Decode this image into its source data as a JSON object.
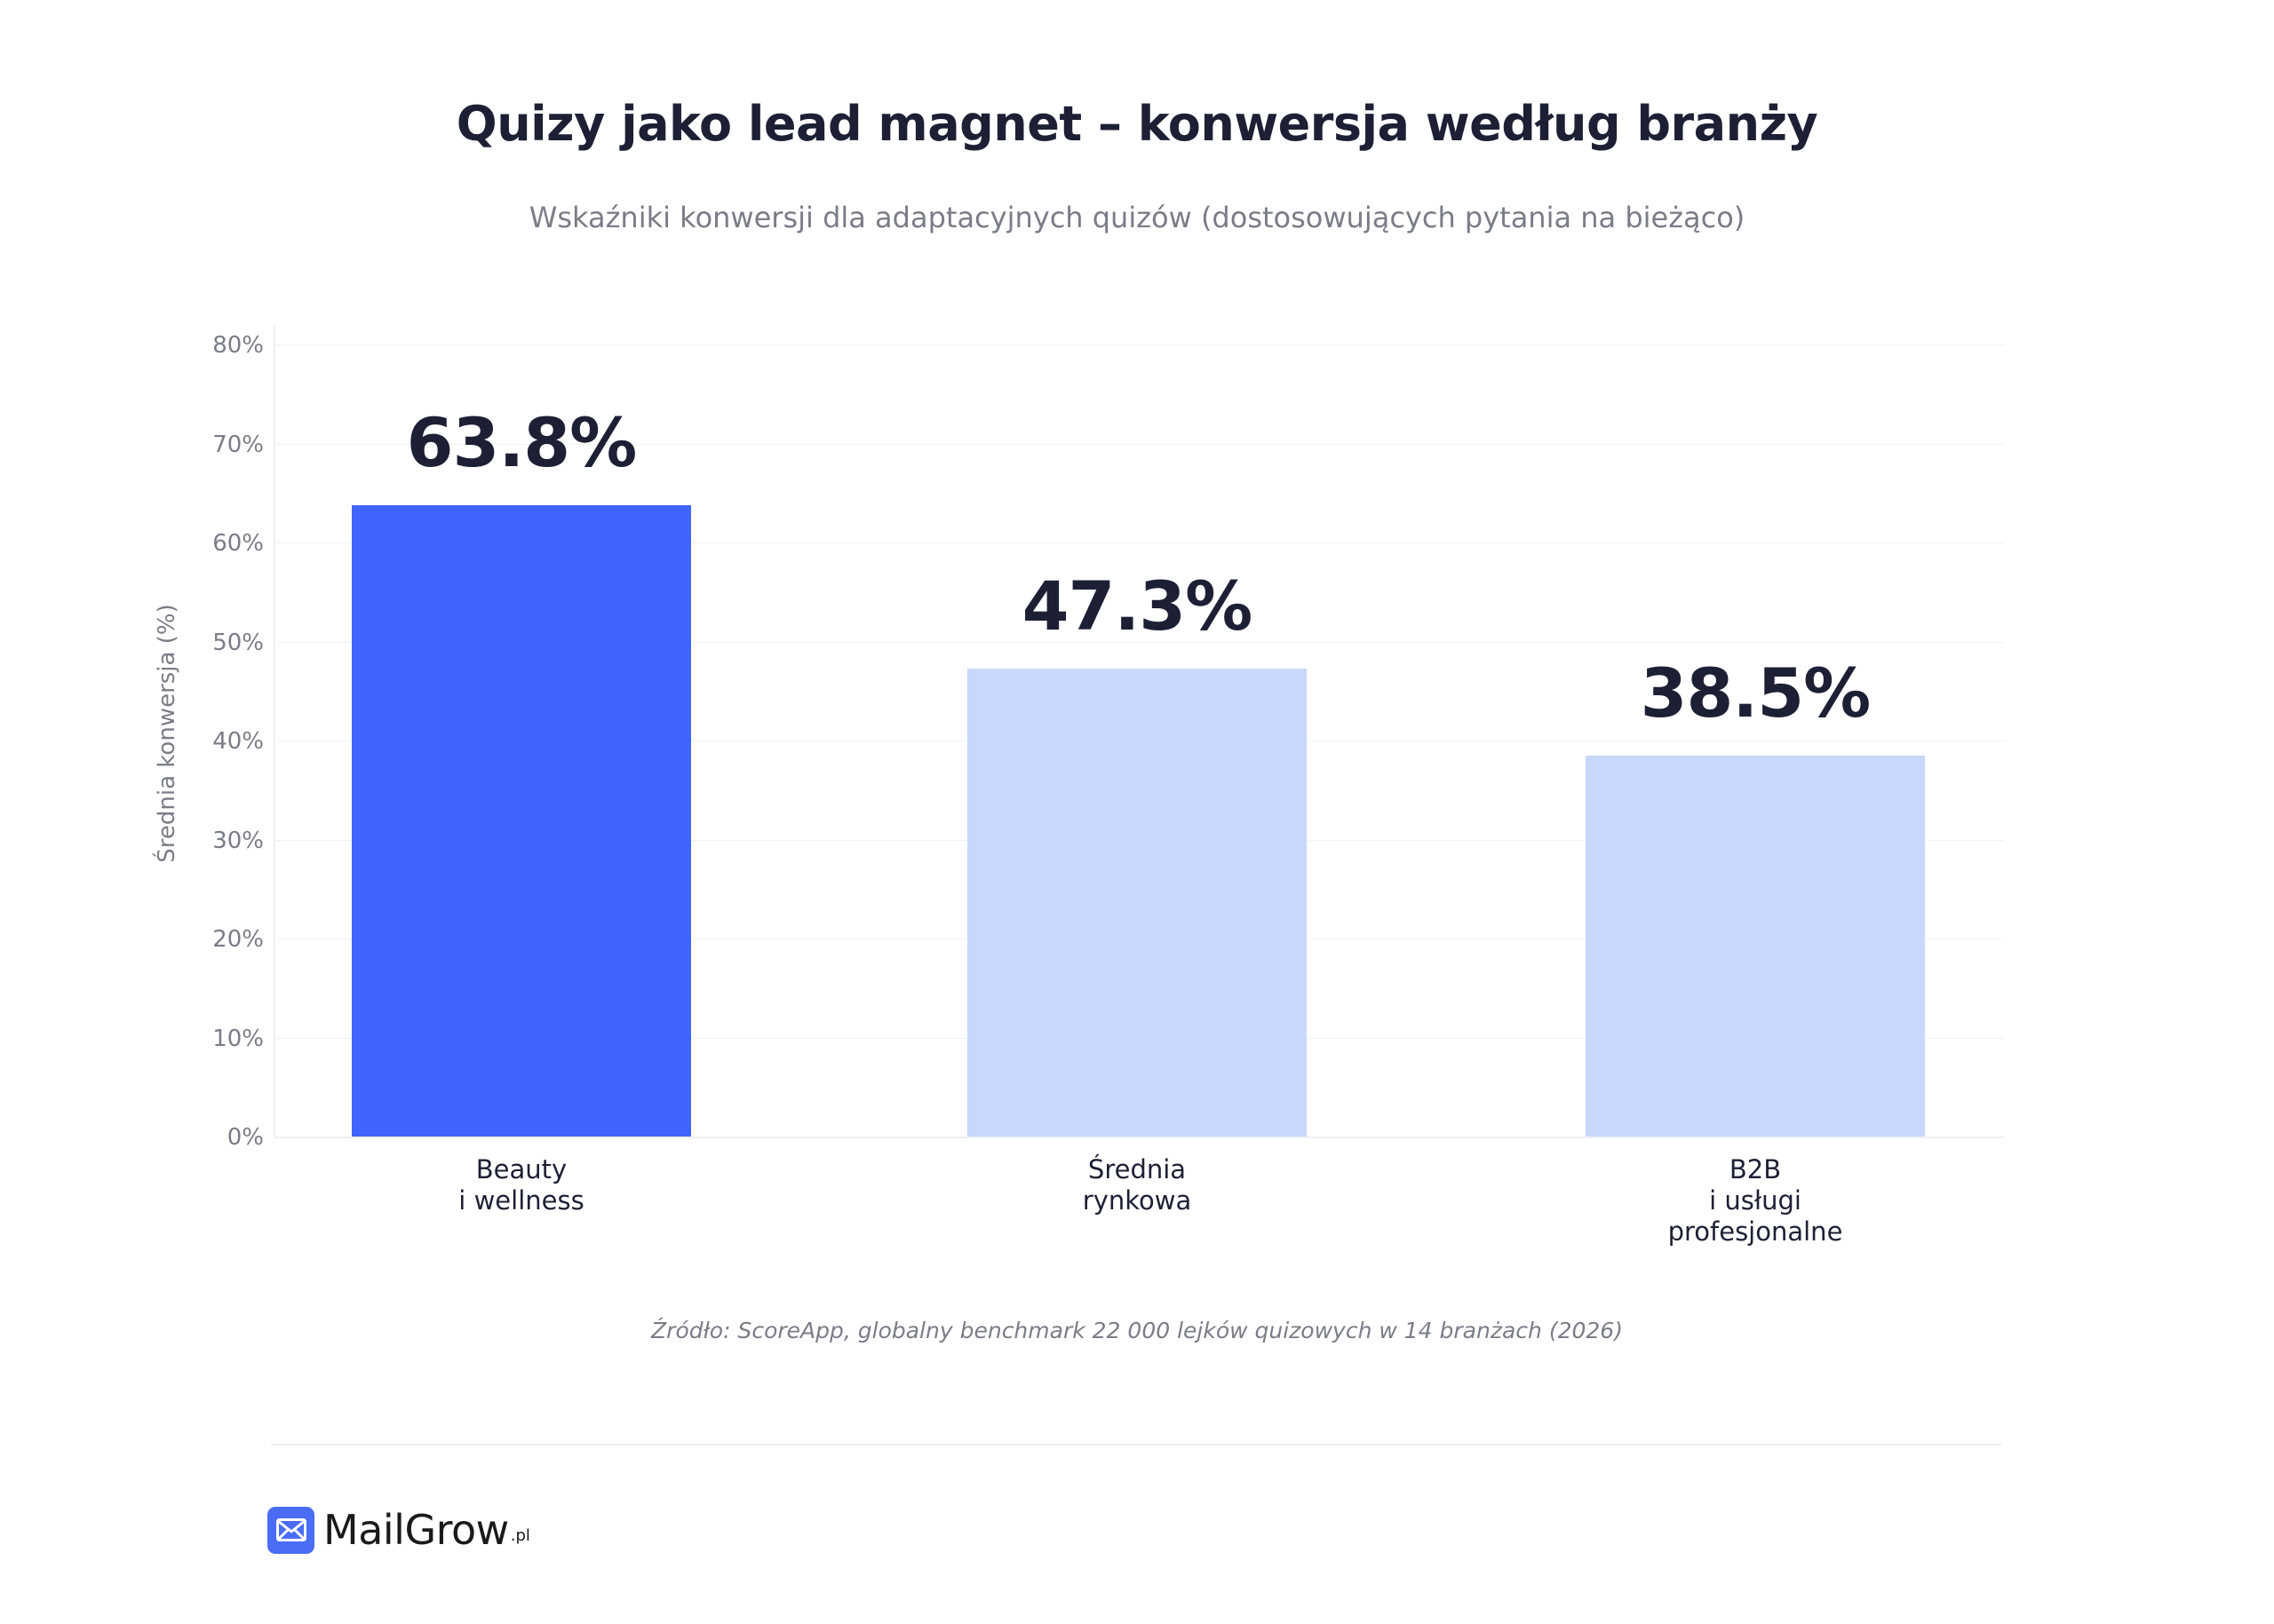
{
  "header": {
    "title": "Quizy jako lead magnet – konwersja według branży",
    "subtitle": "Wskaźniki konwersji dla adaptacyjnych quizów (dostosowujących pytania na bieżąco)"
  },
  "chart_data": {
    "type": "bar",
    "title": "Quizy jako lead magnet – konwersja według branży",
    "subtitle": "Wskaźniki konwersji dla adaptacyjnych quizów (dostosowujących pytania na bieżąco)",
    "categories": [
      "Beauty i wellness",
      "Średnia rynkowa",
      "B2B i usługi profesjonalne"
    ],
    "category_lines": [
      [
        "Beauty",
        "i wellness"
      ],
      [
        "Średnia",
        "rynkowa"
      ],
      [
        "B2B",
        "i usługi",
        "profesjonalne"
      ]
    ],
    "values": [
      63.8,
      47.3,
      38.5
    ],
    "value_labels": [
      "63.8%",
      "47.3%",
      "38.5%"
    ],
    "colors": [
      "#4064fd",
      "#c9d7fd",
      "#c9d7fd"
    ],
    "xlabel": "",
    "ylabel": "Średnia konwersja (%)",
    "ylim": [
      0,
      80
    ],
    "yticks": [
      "0%",
      "10%",
      "20%",
      "30%",
      "40%",
      "50%",
      "60%",
      "70%",
      "80%"
    ],
    "grid": true,
    "legend": null,
    "source": "Źródło: ScoreApp, globalny benchmark 22 000 lejków quizowych w 14 branżach (2026)"
  },
  "footer": {
    "brand_name": "MailGrow",
    "brand_tld": ".pl",
    "brand_icon": "envelope-icon",
    "brand_color": "#4a6cf7"
  }
}
